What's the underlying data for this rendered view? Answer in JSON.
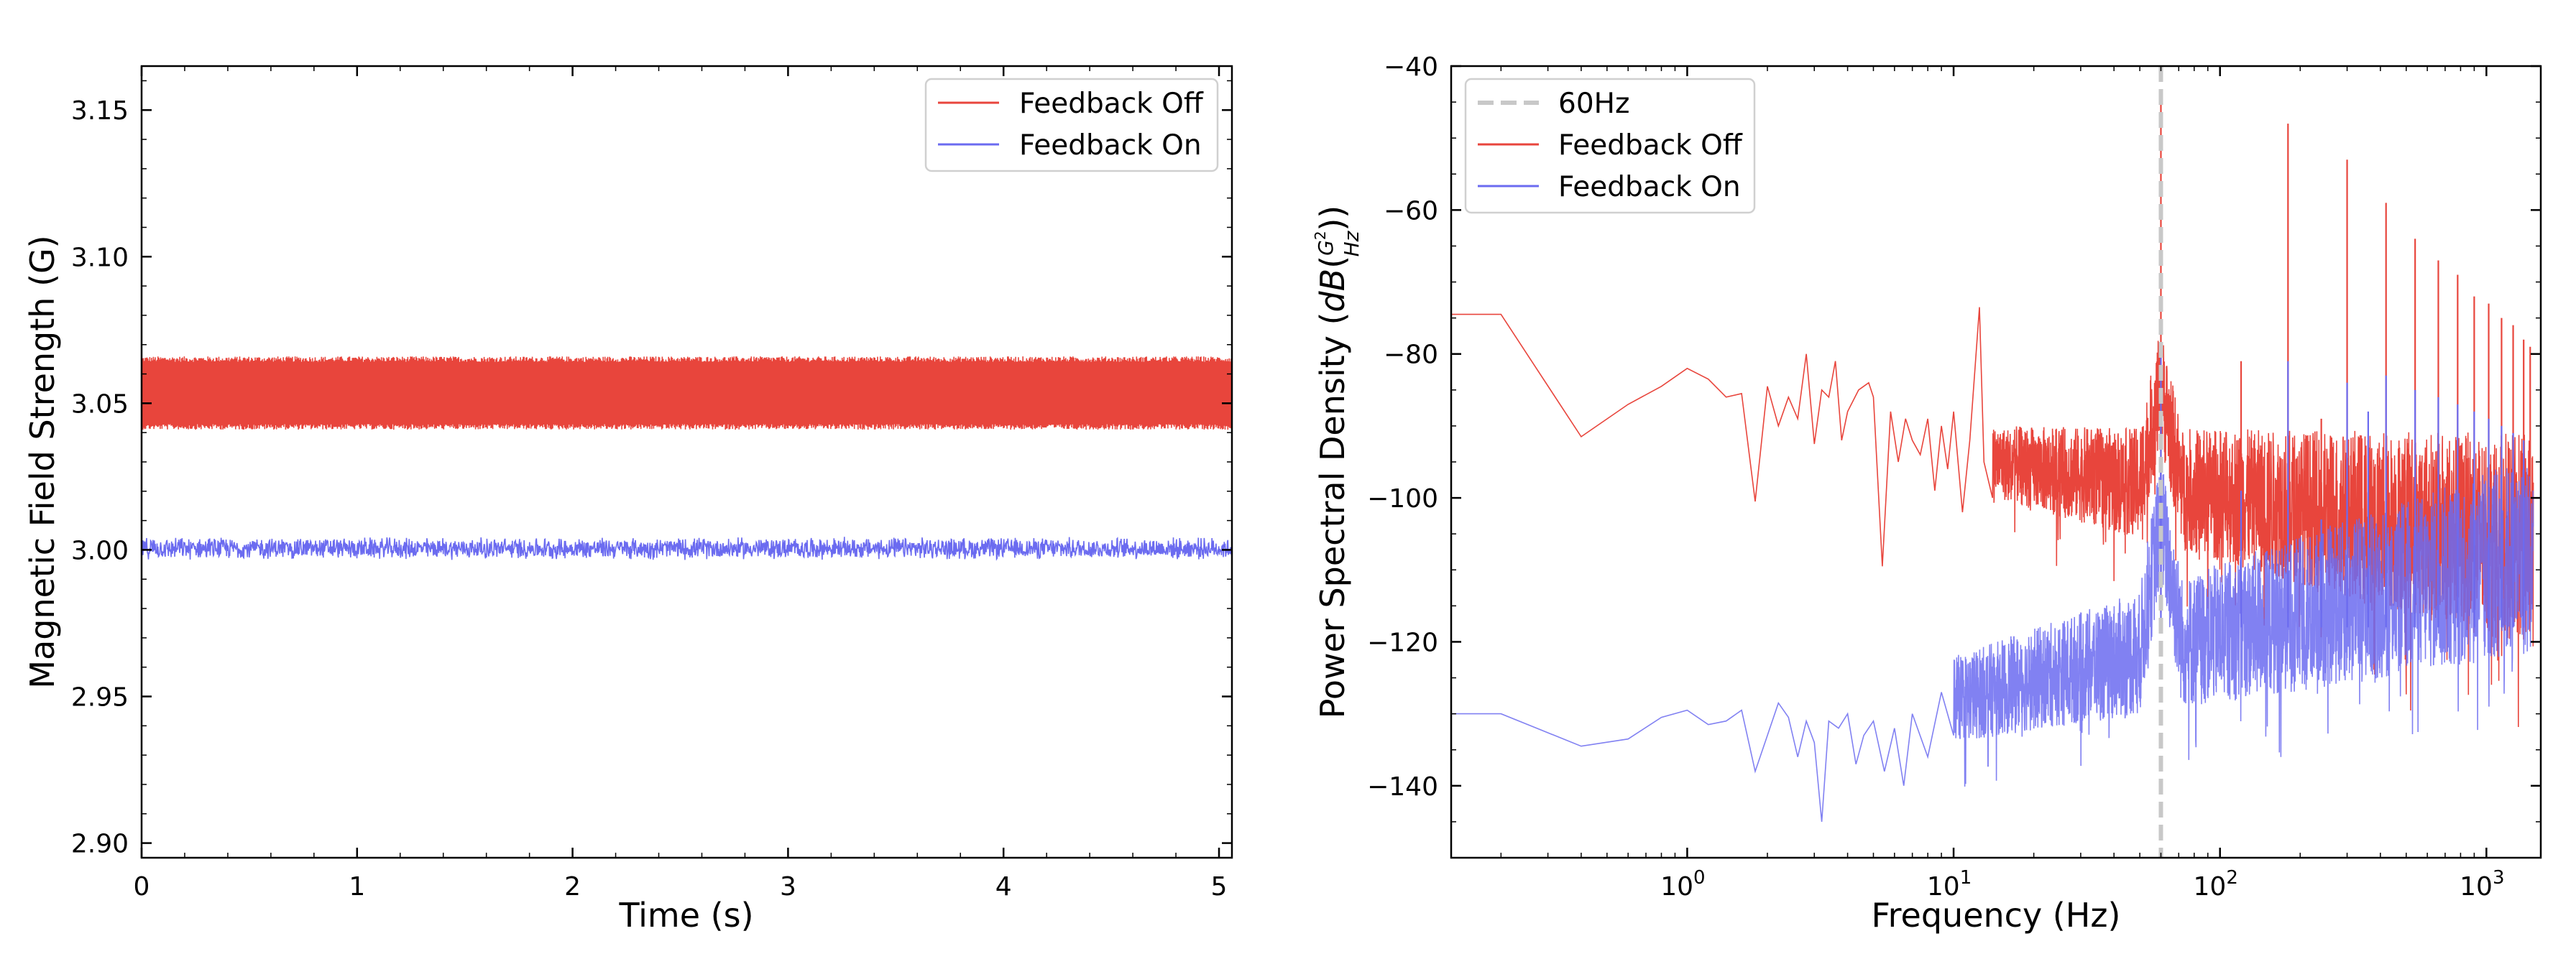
{
  "chart_data": [
    {
      "type": "line",
      "xlabel": "Time (s)",
      "ylabel": "Magnetic Field Strength (G)",
      "xlim": [
        0,
        5.06
      ],
      "ylim": [
        2.895,
        3.165
      ],
      "x_ticks": [
        0,
        1,
        2,
        3,
        4,
        5
      ],
      "x_tick_labels": [
        "0",
        "1",
        "2",
        "3",
        "4",
        "5"
      ],
      "y_ticks": [
        2.9,
        2.95,
        3.0,
        3.05,
        3.1,
        3.15
      ],
      "y_tick_labels": [
        "2.90",
        "2.95",
        "3.00",
        "3.05",
        "3.10",
        "3.15"
      ],
      "legend_position": "top-right",
      "series": [
        {
          "name": "Feedback Off",
          "color": "#e8453c",
          "mean": 3.0535,
          "min": 3.041,
          "max": 3.066,
          "x_range": [
            0,
            5.06
          ]
        },
        {
          "name": "Feedback On",
          "color": "#6b6bf0",
          "mean": 3.0005,
          "min": 2.9965,
          "max": 3.0045,
          "x_range": [
            0,
            5.06
          ]
        }
      ]
    },
    {
      "type": "line",
      "xlabel": "Frequency (Hz)",
      "ylabel_prefix": "Power Spectral Density (",
      "ylabel_dB": "dB",
      "ylabel_paren_open": "(",
      "ylabel_numerator": "G",
      "ylabel_exponent": "2",
      "ylabel_denominator": "Hz",
      "ylabel_paren_close": "))",
      "x_scale": "log",
      "xlim": [
        0.13,
        1600
      ],
      "ylim": [
        -150,
        -40
      ],
      "x_ticks": [
        1,
        10,
        100,
        1000
      ],
      "x_tick_bases": [
        "10",
        "10",
        "10",
        "10"
      ],
      "x_tick_exponents": [
        "0",
        "1",
        "2",
        "3"
      ],
      "y_ticks": [
        -140,
        -120,
        -100,
        -80,
        -60,
        -40
      ],
      "y_tick_labels": [
        "−140",
        "−120",
        "−100",
        "−80",
        "−60",
        "−40"
      ],
      "legend_position": "top-left",
      "vline": {
        "name": "60Hz",
        "x": 60,
        "color": "#c8c8c8",
        "style": "dashed"
      },
      "series": [
        {
          "name": "Feedback Off",
          "color": "#e8453c",
          "points": [
            [
              0.13,
              -74.5
            ],
            [
              0.2,
              -74.5
            ],
            [
              0.4,
              -91.5
            ],
            [
              0.6,
              -87
            ],
            [
              0.8,
              -84.5
            ],
            [
              1.0,
              -82
            ],
            [
              1.2,
              -83.5
            ],
            [
              1.4,
              -86
            ],
            [
              1.6,
              -85.5
            ],
            [
              1.8,
              -100.5
            ],
            [
              2.0,
              -84.5
            ],
            [
              2.2,
              -90
            ],
            [
              2.4,
              -86
            ],
            [
              2.6,
              -89
            ],
            [
              2.8,
              -80
            ],
            [
              3.0,
              -92.5
            ],
            [
              3.2,
              -85
            ],
            [
              3.4,
              -86
            ],
            [
              3.6,
              -81
            ],
            [
              3.8,
              -92
            ],
            [
              4.0,
              -88
            ],
            [
              4.4,
              -85
            ],
            [
              4.8,
              -84
            ],
            [
              5.0,
              -86
            ],
            [
              5.4,
              -109.5
            ],
            [
              5.8,
              -88
            ],
            [
              6.2,
              -95
            ],
            [
              6.6,
              -89
            ],
            [
              7.0,
              -92
            ],
            [
              7.5,
              -94
            ],
            [
              8.0,
              -89
            ],
            [
              8.5,
              -99
            ],
            [
              9.0,
              -90
            ],
            [
              9.5,
              -96
            ],
            [
              10,
              -88
            ],
            [
              10.8,
              -102
            ],
            [
              11.5,
              -92
            ],
            [
              12.5,
              -73.5
            ],
            [
              13,
              -95
            ],
            [
              14,
              -100
            ]
          ],
          "noise_band": {
            "x_range": [
              14,
              1500
            ],
            "center_start": -95,
            "center_end": -106,
            "spread_start": 5,
            "spread_end": 15
          },
          "peaks": [
            [
              60,
              -45
            ],
            [
              120,
              -81
            ],
            [
              180,
              -48
            ],
            [
              240,
              -89
            ],
            [
              300,
              -53
            ],
            [
              360,
              -92
            ],
            [
              420,
              -59
            ],
            [
              540,
              -64
            ],
            [
              660,
              -67
            ],
            [
              780,
              -69
            ],
            [
              900,
              -72
            ],
            [
              1020,
              -73
            ],
            [
              1140,
              -75
            ],
            [
              1260,
              -76
            ],
            [
              1380,
              -78
            ],
            [
              1460,
              -79
            ]
          ]
        },
        {
          "name": "Feedback On",
          "color": "#6b6bf0",
          "points": [
            [
              0.13,
              -130
            ],
            [
              0.2,
              -130
            ],
            [
              0.4,
              -134.5
            ],
            [
              0.6,
              -133.5
            ],
            [
              0.8,
              -130.5
            ],
            [
              1.0,
              -129.5
            ],
            [
              1.2,
              -131.5
            ],
            [
              1.4,
              -131
            ],
            [
              1.6,
              -129.5
            ],
            [
              1.8,
              -138
            ],
            [
              2.0,
              -133
            ],
            [
              2.2,
              -128.5
            ],
            [
              2.4,
              -130.5
            ],
            [
              2.6,
              -136
            ],
            [
              2.8,
              -131
            ],
            [
              3.0,
              -134
            ],
            [
              3.2,
              -145
            ],
            [
              3.4,
              -131
            ],
            [
              3.7,
              -132
            ],
            [
              4.0,
              -130
            ],
            [
              4.3,
              -137
            ],
            [
              4.6,
              -133
            ],
            [
              5.0,
              -131
            ],
            [
              5.5,
              -138
            ],
            [
              6.0,
              -132
            ],
            [
              6.5,
              -140
            ],
            [
              7.0,
              -130
            ],
            [
              8.0,
              -136
            ],
            [
              9.0,
              -127
            ],
            [
              10,
              -133
            ]
          ],
          "noise_band": {
            "x_range": [
              10,
              1500
            ],
            "center_start": -128,
            "center_end": -108,
            "spread_start": 6,
            "spread_end": 14
          },
          "peaks": [
            [
              60,
              -79
            ],
            [
              120,
              -99
            ],
            [
              180,
              -81
            ],
            [
              240,
              -103
            ],
            [
              300,
              -84
            ],
            [
              360,
              -88
            ],
            [
              420,
              -83
            ],
            [
              540,
              -85
            ],
            [
              660,
              -86
            ],
            [
              780,
              -87
            ],
            [
              900,
              -88
            ],
            [
              1020,
              -89
            ],
            [
              1140,
              -90
            ],
            [
              1260,
              -91
            ],
            [
              1380,
              -92
            ]
          ]
        }
      ]
    }
  ]
}
